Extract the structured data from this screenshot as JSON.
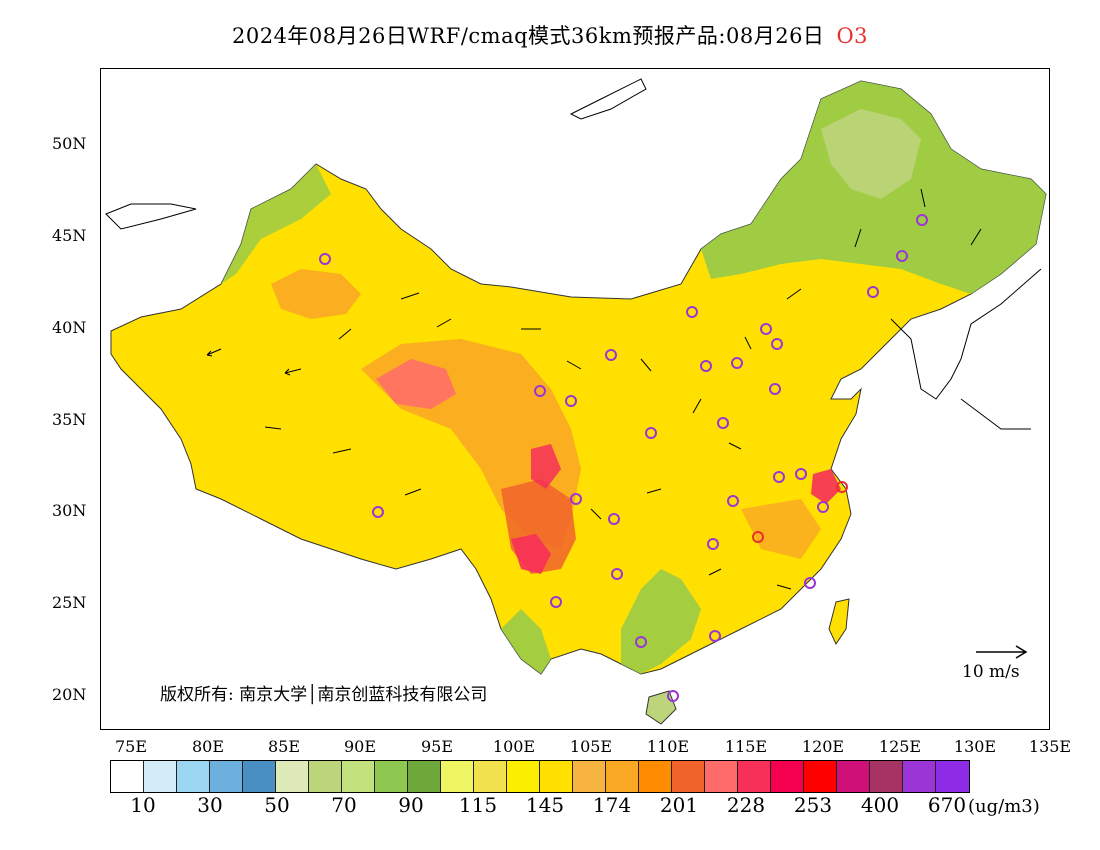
{
  "title": {
    "main": "2024年08月26日WRF/cmaq模式36km预报产品:08月26日",
    "species": "O3"
  },
  "axes": {
    "lat_labels": [
      "50N",
      "45N",
      "40N",
      "35N",
      "30N",
      "25N",
      "20N"
    ],
    "lon_labels": [
      "75E",
      "80E",
      "85E",
      "90E",
      "95E",
      "100E",
      "105E",
      "110E",
      "115E",
      "120E",
      "125E",
      "130E",
      "135E"
    ]
  },
  "copyright": "版权所有: 南京大学│南京创蓝科技有限公司",
  "wind_reference": "10 m/s",
  "legend": {
    "colors": [
      "#ffffff",
      "#d4ecfa",
      "#9ad6f2",
      "#6db0dd",
      "#4a8fc2",
      "#dfeab9",
      "#bcd47a",
      "#c3e17d",
      "#8fc850",
      "#6ea83a",
      "#f0f564",
      "#f2e24d",
      "#fbee00",
      "#ffe000",
      "#f8b440",
      "#f9a823",
      "#ff8b00",
      "#f0632b",
      "#ff6b6b",
      "#f63059",
      "#f4004f",
      "#ff0000",
      "#ce1078",
      "#a73264",
      "#9b35d6",
      "#8e2be6"
    ],
    "labels": [
      "10",
      "30",
      "50",
      "70",
      "90",
      "115",
      "145",
      "174",
      "201",
      "228",
      "253",
      "400",
      "670"
    ],
    "unit": "(ug/m3)"
  },
  "map_colors": {
    "ocean": "#ffffff",
    "o3_high": "#ffe000",
    "o3_veryhigh": "#f9a823",
    "o3_extreme": "#f63059",
    "o3_low": "#8fc850",
    "city_marker": "#9b35d6",
    "city_marker_alt": "#e8312e"
  }
}
